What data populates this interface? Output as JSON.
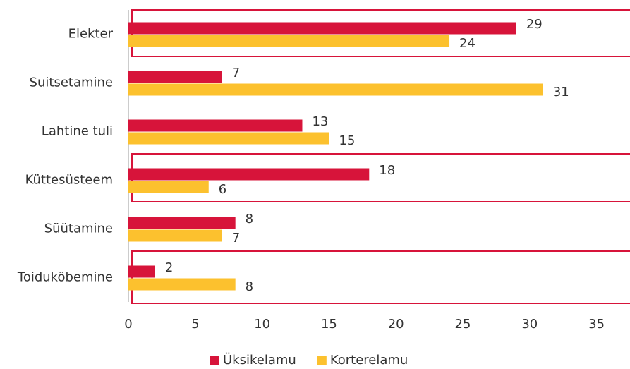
{
  "chart_data": {
    "type": "barh",
    "categories": [
      "Elekter",
      "Suitsetamine",
      "Lahtine tuli",
      "Küttesüsteem",
      "Süütamine",
      "Toiduköbemine"
    ],
    "series": [
      {
        "name": "Üksikelamu",
        "color": "#d7143a",
        "values": [
          29,
          7,
          13,
          18,
          8,
          2
        ]
      },
      {
        "name": "Korterelamu",
        "color": "#fcc12e",
        "values": [
          24,
          31,
          15,
          6,
          7,
          8
        ]
      }
    ],
    "xlim": [
      0,
      37.5
    ],
    "xticks": [
      0,
      5,
      10,
      15,
      20,
      25,
      30,
      35
    ],
    "grid": false,
    "legend": "bottom"
  }
}
